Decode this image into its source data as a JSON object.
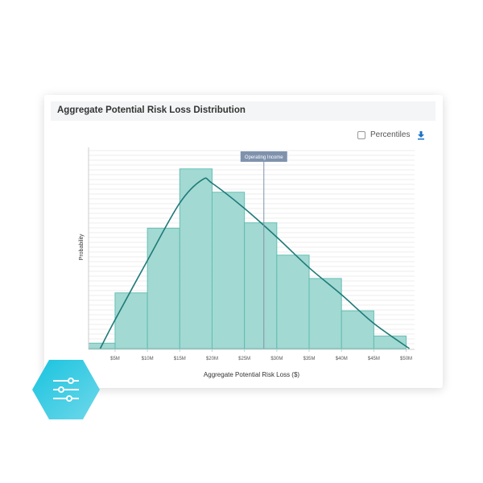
{
  "card": {
    "title": "Aggregate Potential Risk Loss Distribution",
    "percentiles_label": "Percentiles",
    "percentiles_checked": false,
    "download_icon": "download-icon"
  },
  "badge": {
    "icon": "sliders-icon",
    "color_start": "#1ec8e0",
    "color_end": "#5fd6ea"
  },
  "chart_data": {
    "type": "bar",
    "title": "",
    "xlabel": "Aggregate Potential Risk Loss ($)",
    "ylabel": "Probability",
    "x_tick_labels": [
      "$5M",
      "$10M",
      "$15M",
      "$20M",
      "$25M",
      "$30M",
      "$35M",
      "$40M",
      "$45M",
      "$50M"
    ],
    "x_ticks": [
      5,
      10,
      15,
      20,
      25,
      30,
      35,
      40,
      45,
      50
    ],
    "xlim": [
      0.9,
      51.3
    ],
    "ylim": [
      0,
      112
    ],
    "bins": [
      [
        0.9,
        5
      ],
      [
        5,
        10
      ],
      [
        10,
        15
      ],
      [
        15,
        20
      ],
      [
        20,
        25
      ],
      [
        25,
        30
      ],
      [
        30,
        35
      ],
      [
        35,
        40
      ],
      [
        40,
        45
      ],
      [
        45,
        50
      ]
    ],
    "values": [
      3,
      31,
      67,
      100,
      87,
      70,
      52,
      39,
      21,
      7
    ],
    "curve": [
      [
        2.7,
        0
      ],
      [
        5,
        16
      ],
      [
        10,
        49
      ],
      [
        15,
        81
      ],
      [
        18.5,
        94
      ],
      [
        20,
        92
      ],
      [
        25,
        78
      ],
      [
        30,
        62
      ],
      [
        35,
        45
      ],
      [
        40,
        30
      ],
      [
        45,
        14
      ],
      [
        50.5,
        0
      ]
    ],
    "marker": {
      "label": "Operating Income",
      "x": 28
    },
    "grid": true,
    "bar_color": "#9fd8d1",
    "bar_edge": "#5dbdb1",
    "curve_color": "#1f7a78",
    "marker_color": "#7f92ad"
  }
}
